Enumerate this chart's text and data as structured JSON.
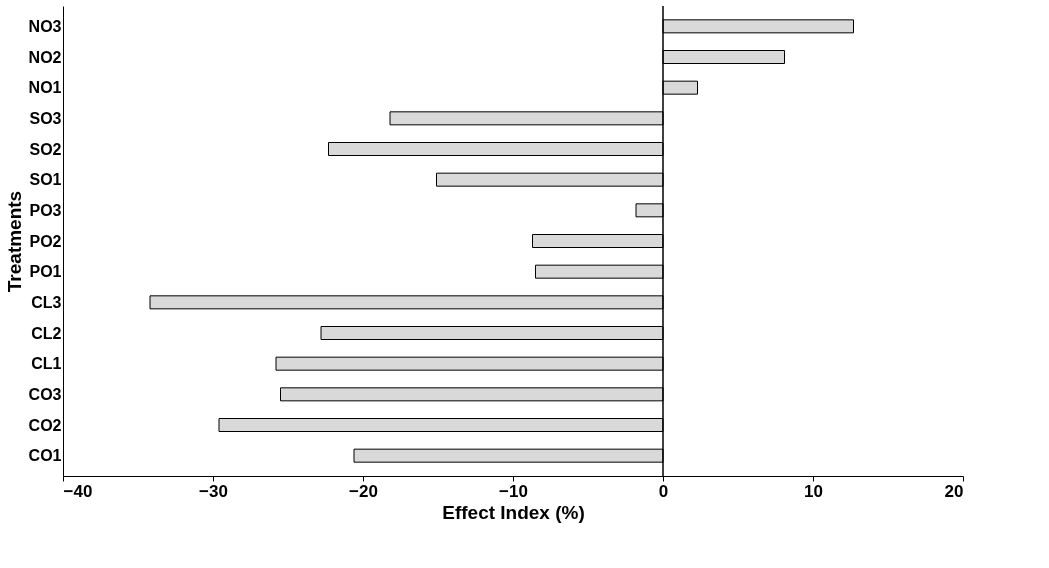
{
  "chart_data": {
    "type": "bar",
    "orientation": "horizontal",
    "xlabel": "Effect Index  (%)",
    "ylabel": "Treatments",
    "categories": [
      "NO3",
      "NO2",
      "NO1",
      "SO3",
      "SO2",
      "SO1",
      "PO3",
      "PO2",
      "PO1",
      "CL3",
      "CL2",
      "CL1",
      "CO3",
      "CO2",
      "CO1"
    ],
    "values": [
      12.7,
      8.1,
      2.3,
      -18.2,
      -22.3,
      -15.1,
      -1.8,
      -8.7,
      -8.5,
      -34.2,
      -22.8,
      -25.8,
      -25.5,
      -29.6,
      -20.6
    ],
    "color": "#d9d9d9",
    "xlim": [
      -40,
      20
    ],
    "xticks": [
      -40,
      -30,
      -20,
      -10,
      0,
      10,
      20
    ],
    "grid": false,
    "ref_lines": [
      {
        "axis": "x",
        "value": 0
      }
    ]
  }
}
